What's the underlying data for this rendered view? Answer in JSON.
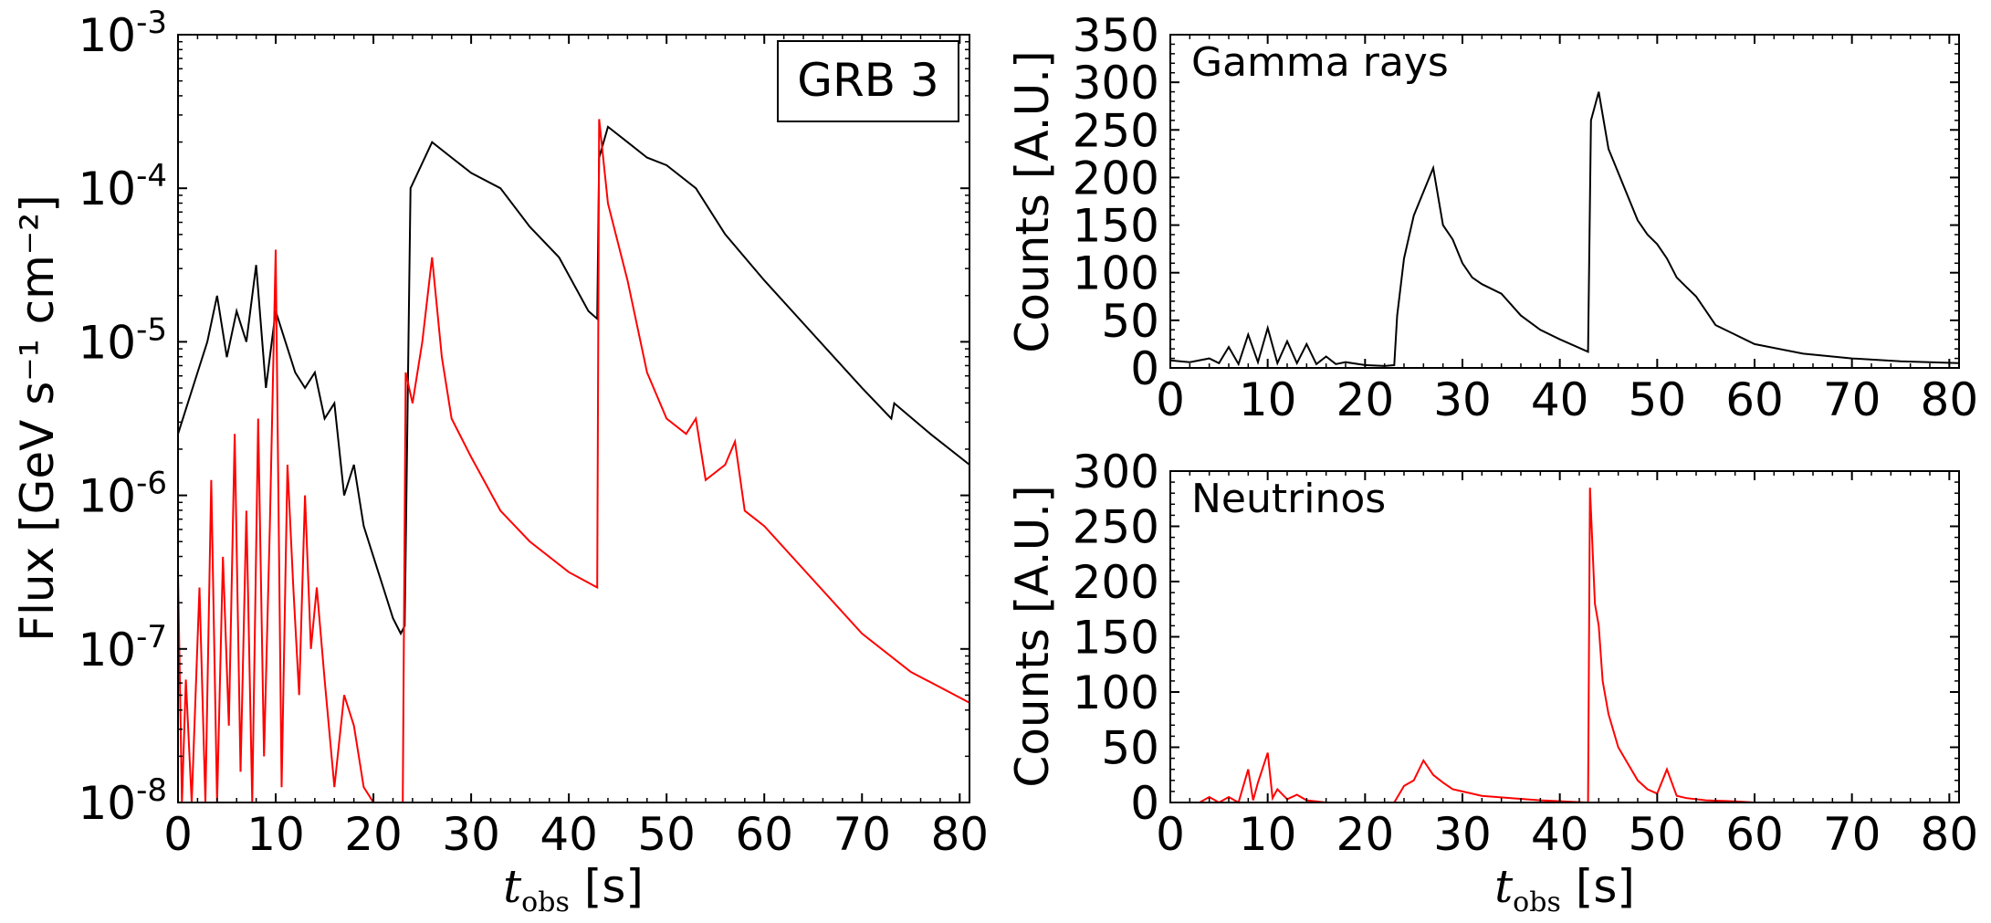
{
  "chart_data": [
    {
      "id": "flux",
      "type": "line",
      "yscale": "log",
      "xlim": [
        0,
        81
      ],
      "ylim_exp": [
        -8,
        -3
      ],
      "x_ticks": [
        0,
        10,
        20,
        30,
        40,
        50,
        60,
        70,
        80
      ],
      "y_ticks": [
        {
          "base": "10",
          "exp": "-8"
        },
        {
          "base": "10",
          "exp": "-7"
        },
        {
          "base": "10",
          "exp": "-6"
        },
        {
          "base": "10",
          "exp": "-5"
        },
        {
          "base": "10",
          "exp": "-4"
        },
        {
          "base": "10",
          "exp": "-3"
        }
      ],
      "ylabel": "Flux [GeV s⁻¹ cm⁻²]",
      "xlabel_var": "t",
      "xlabel_sub": "obs",
      "xlabel_unit": "[s]",
      "legend_text": "GRB 3",
      "legend_position": "top-right",
      "series": [
        {
          "name": "gamma-rays",
          "color": "#000000",
          "x": [
            0,
            1,
            2,
            3,
            4,
            5,
            6,
            7,
            8,
            9,
            10,
            11,
            12,
            13,
            14,
            15,
            16,
            17,
            18,
            19,
            20,
            21,
            22,
            22.8,
            23.2,
            23.8,
            26,
            28,
            30,
            33,
            36,
            39,
            42,
            42.9,
            43.1,
            44,
            46,
            48,
            50,
            53,
            56,
            60,
            65,
            70,
            73,
            73.3,
            77,
            81
          ],
          "log_y": [
            -5.6,
            -5.4,
            -5.2,
            -5.0,
            -4.7,
            -5.1,
            -4.8,
            -5.0,
            -4.5,
            -5.3,
            -4.8,
            -5.0,
            -5.2,
            -5.3,
            -5.2,
            -5.5,
            -5.4,
            -6.0,
            -5.8,
            -6.2,
            -6.4,
            -6.6,
            -6.8,
            -6.9,
            -6.85,
            -4.0,
            -3.7,
            -3.8,
            -3.9,
            -4.0,
            -4.25,
            -4.45,
            -4.8,
            -4.85,
            -3.8,
            -3.6,
            -3.7,
            -3.8,
            -3.85,
            -4.0,
            -4.3,
            -4.6,
            -4.95,
            -5.3,
            -5.5,
            -5.4,
            -5.6,
            -5.8
          ]
        },
        {
          "name": "neutrinos",
          "color": "#ff0000",
          "x": [
            0,
            0.4,
            0.8,
            1.4,
            2.2,
            2.8,
            3.4,
            4.0,
            4.6,
            5.2,
            5.8,
            6.4,
            7.0,
            7.6,
            8.2,
            8.8,
            9.4,
            10.0,
            10.6,
            11.2,
            11.8,
            12.4,
            13.0,
            13.6,
            14.2,
            15.0,
            16.0,
            17.0,
            18.0,
            19.0,
            20.0,
            21.0,
            22.0,
            22.6,
            23.0,
            23.3,
            24.0,
            25.0,
            26.0,
            27.0,
            28.0,
            30.0,
            33.0,
            36.0,
            40.0,
            42.9,
            43.1,
            44.0,
            46.0,
            48.0,
            50.0,
            52.0,
            53.0,
            54.0,
            56.0,
            57.0,
            58.0,
            60.0,
            65.0,
            70.0,
            75.0,
            81.0
          ],
          "log_y": [
            -6.5,
            -8.0,
            -7.2,
            -8.0,
            -6.6,
            -8.0,
            -5.9,
            -8.0,
            -6.4,
            -7.5,
            -5.6,
            -7.8,
            -6.1,
            -8.0,
            -5.5,
            -7.7,
            -6.2,
            -4.4,
            -7.9,
            -5.8,
            -6.6,
            -7.3,
            -6.0,
            -7.0,
            -6.6,
            -7.2,
            -7.9,
            -7.3,
            -7.5,
            -7.9,
            -8.0,
            -8.0,
            -8.0,
            -8.0,
            -8.0,
            -5.2,
            -5.4,
            -5.0,
            -4.45,
            -5.1,
            -5.5,
            -5.75,
            -6.1,
            -6.3,
            -6.5,
            -6.6,
            -3.55,
            -4.1,
            -4.6,
            -5.2,
            -5.5,
            -5.6,
            -5.5,
            -5.9,
            -5.8,
            -5.65,
            -6.1,
            -6.2,
            -6.55,
            -6.9,
            -7.15,
            -7.35
          ]
        }
      ]
    },
    {
      "id": "gamma",
      "type": "line",
      "title": "Gamma rays",
      "xlim": [
        0,
        81
      ],
      "ylim": [
        0,
        350
      ],
      "x_ticks": [
        0,
        10,
        20,
        30,
        40,
        50,
        60,
        70,
        80
      ],
      "y_ticks": [
        0,
        50,
        100,
        150,
        200,
        250,
        300,
        350
      ],
      "ylabel": "Counts [A.U.]",
      "series": [
        {
          "name": "gamma-rays",
          "color": "#000000",
          "x": [
            0,
            2,
            4,
            5,
            6,
            7,
            8,
            9,
            10,
            11,
            12,
            13,
            14,
            15,
            16,
            17,
            18,
            20,
            22,
            23.0,
            23.3,
            24,
            25,
            26,
            27,
            28,
            29,
            30,
            31,
            32,
            34,
            36,
            38,
            40,
            42.9,
            43.2,
            44,
            45,
            46,
            47,
            48,
            49,
            50,
            51,
            52,
            53,
            54,
            55,
            56,
            58,
            60,
            65,
            70,
            75,
            81
          ],
          "y": [
            8,
            6,
            10,
            5,
            22,
            4,
            35,
            6,
            42,
            5,
            28,
            5,
            25,
            4,
            12,
            4,
            6,
            3,
            2,
            3,
            55,
            115,
            160,
            185,
            210,
            150,
            135,
            110,
            95,
            88,
            78,
            55,
            40,
            30,
            17,
            260,
            290,
            230,
            205,
            180,
            155,
            140,
            130,
            115,
            95,
            85,
            75,
            60,
            45,
            35,
            25,
            15,
            10,
            7,
            5
          ]
        }
      ]
    },
    {
      "id": "neutrino",
      "type": "line",
      "title": "Neutrinos",
      "xlim": [
        0,
        81
      ],
      "ylim": [
        0,
        300
      ],
      "x_ticks": [
        0,
        10,
        20,
        30,
        40,
        50,
        60,
        70,
        80
      ],
      "y_ticks": [
        0,
        50,
        100,
        150,
        200,
        250,
        300
      ],
      "ylabel": "Counts [A.U.]",
      "xlabel_var": "t",
      "xlabel_sub": "obs",
      "xlabel_unit": "[s]",
      "series": [
        {
          "name": "neutrinos",
          "color": "#ff0000",
          "x": [
            0,
            3,
            4,
            5,
            6,
            7,
            8,
            8.5,
            9,
            10,
            10.5,
            11,
            12,
            13,
            14,
            16,
            20,
            23,
            24,
            25,
            26,
            27,
            28,
            29,
            30,
            32,
            35,
            38,
            42.8,
            42.9,
            43.1,
            43.6,
            44,
            44.4,
            45,
            46,
            47,
            48,
            49,
            50,
            51,
            52,
            53,
            55,
            58,
            60,
            65,
            70,
            81
          ],
          "y": [
            0,
            0,
            5,
            0,
            5,
            0,
            30,
            2,
            18,
            45,
            4,
            12,
            3,
            7,
            2,
            0,
            0,
            0,
            15,
            20,
            38,
            25,
            18,
            12,
            10,
            6,
            4,
            2,
            0,
            0,
            285,
            180,
            160,
            110,
            80,
            50,
            35,
            20,
            12,
            8,
            30,
            6,
            4,
            2,
            1,
            0,
            0,
            0,
            0
          ]
        }
      ]
    }
  ]
}
